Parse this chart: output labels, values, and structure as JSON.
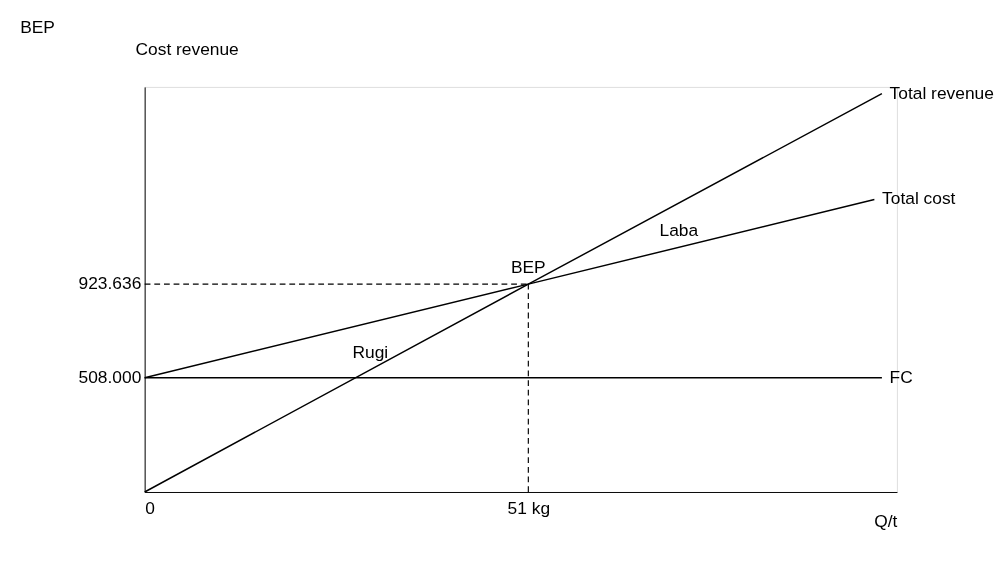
{
  "chart_data": {
    "type": "line",
    "title": "BEP",
    "xlabel": "Q/t",
    "ylabel": "Cost revenue",
    "series": [
      {
        "name": "Total revenue",
        "color": "#000000",
        "x": [
          0,
          51,
          98
        ],
        "values": [
          0,
          923636,
          1770000
        ]
      },
      {
        "name": "Total cost",
        "color": "#000000",
        "x": [
          0,
          51,
          97
        ],
        "values": [
          508000,
          923636,
          1300000
        ]
      },
      {
        "name": "FC",
        "color": "#000000",
        "x": [
          0,
          98
        ],
        "values": [
          508000,
          508000
        ]
      }
    ],
    "xlim": [
      0,
      100
    ],
    "ylim": [
      0,
      1800000
    ],
    "xticks": [
      0,
      {
        "value": 51,
        "label": "51 kg"
      }
    ],
    "yticks": [
      {
        "value": 508000,
        "label": "508.000"
      },
      {
        "value": 923636,
        "label": "923.636"
      }
    ],
    "ref_lines": [
      {
        "axis": "y",
        "value": 923636,
        "label": null,
        "line_style": "dashed"
      },
      {
        "axis": "x",
        "value": 51,
        "label": null,
        "line_style": "dashed"
      }
    ],
    "annotations": [
      {
        "text": "BEP",
        "x": 51,
        "y": 923636
      },
      {
        "text": "Rugi",
        "x": 30,
        "y": 543000
      },
      {
        "text": "Laba",
        "x": 71,
        "y": 1087000
      }
    ],
    "grid": false,
    "marker": "none",
    "line_style": "solid"
  }
}
